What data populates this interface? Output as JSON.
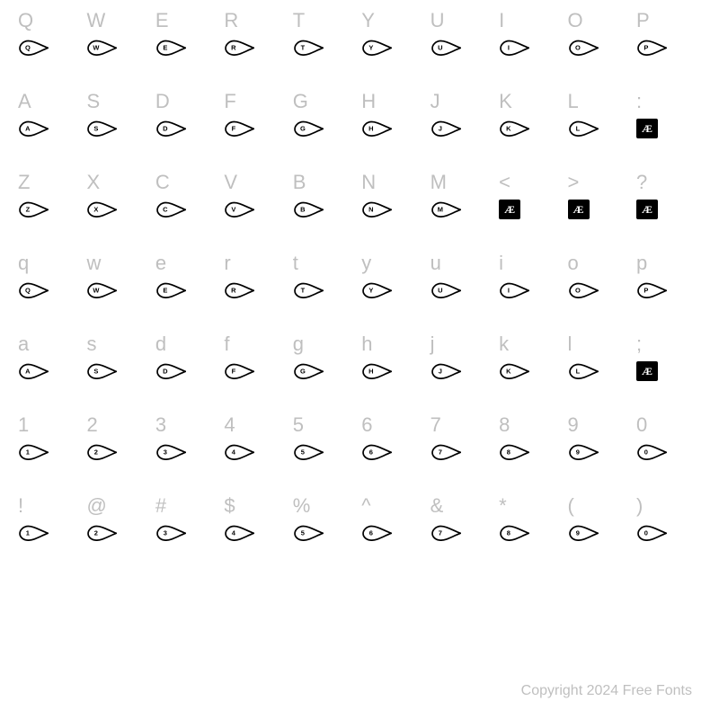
{
  "colors": {
    "label": "#bfbfbf",
    "glyph": "#000000",
    "background": "#ffffff",
    "box_bg": "#000000",
    "box_fg": "#ffffff"
  },
  "typography": {
    "label_fontsize": 22,
    "copyright_fontsize": 16,
    "box_fontsize": 12
  },
  "layout": {
    "cols": 10,
    "eye_width": 34,
    "eye_height": 18
  },
  "rows": [
    {
      "labels": [
        "Q",
        "W",
        "E",
        "R",
        "T",
        "Y",
        "U",
        "I",
        "O",
        "P"
      ],
      "glyphs": [
        {
          "type": "eye",
          "inner": "Q"
        },
        {
          "type": "eye",
          "inner": "W"
        },
        {
          "type": "eye",
          "inner": "E"
        },
        {
          "type": "eye",
          "inner": "R"
        },
        {
          "type": "eye",
          "inner": "T"
        },
        {
          "type": "eye",
          "inner": "Y"
        },
        {
          "type": "eye",
          "inner": "U"
        },
        {
          "type": "eye",
          "inner": "I"
        },
        {
          "type": "eye",
          "inner": "O"
        },
        {
          "type": "eye",
          "inner": "P"
        }
      ]
    },
    {
      "labels": [
        "A",
        "S",
        "D",
        "F",
        "G",
        "H",
        "J",
        "K",
        "L",
        ":"
      ],
      "glyphs": [
        {
          "type": "eye",
          "inner": "A"
        },
        {
          "type": "eye",
          "inner": "S"
        },
        {
          "type": "eye",
          "inner": "D"
        },
        {
          "type": "eye",
          "inner": "F"
        },
        {
          "type": "eye",
          "inner": "G"
        },
        {
          "type": "eye",
          "inner": "H"
        },
        {
          "type": "eye",
          "inner": "J"
        },
        {
          "type": "eye",
          "inner": "K"
        },
        {
          "type": "eye",
          "inner": "L"
        },
        {
          "type": "box",
          "text": "Æ"
        }
      ]
    },
    {
      "labels": [
        "Z",
        "X",
        "C",
        "V",
        "B",
        "N",
        "M",
        "<",
        ">",
        "?"
      ],
      "glyphs": [
        {
          "type": "eye",
          "inner": "Z"
        },
        {
          "type": "eye",
          "inner": "X"
        },
        {
          "type": "eye",
          "inner": "C"
        },
        {
          "type": "eye",
          "inner": "V"
        },
        {
          "type": "eye",
          "inner": "B"
        },
        {
          "type": "eye",
          "inner": "N"
        },
        {
          "type": "eye",
          "inner": "M"
        },
        {
          "type": "box",
          "text": "Æ"
        },
        {
          "type": "box",
          "text": "Æ"
        },
        {
          "type": "box",
          "text": "Æ"
        }
      ]
    },
    {
      "labels": [
        "q",
        "w",
        "e",
        "r",
        "t",
        "y",
        "u",
        "i",
        "o",
        "p"
      ],
      "glyphs": [
        {
          "type": "eye",
          "inner": "Q"
        },
        {
          "type": "eye",
          "inner": "W"
        },
        {
          "type": "eye",
          "inner": "E"
        },
        {
          "type": "eye",
          "inner": "R"
        },
        {
          "type": "eye",
          "inner": "T"
        },
        {
          "type": "eye",
          "inner": "Y"
        },
        {
          "type": "eye",
          "inner": "U"
        },
        {
          "type": "eye",
          "inner": "I"
        },
        {
          "type": "eye",
          "inner": "O"
        },
        {
          "type": "eye",
          "inner": "P"
        }
      ]
    },
    {
      "labels": [
        "a",
        "s",
        "d",
        "f",
        "g",
        "h",
        "j",
        "k",
        "l",
        ";"
      ],
      "glyphs": [
        {
          "type": "eye",
          "inner": "A"
        },
        {
          "type": "eye",
          "inner": "S"
        },
        {
          "type": "eye",
          "inner": "D"
        },
        {
          "type": "eye",
          "inner": "F"
        },
        {
          "type": "eye",
          "inner": "G"
        },
        {
          "type": "eye",
          "inner": "H"
        },
        {
          "type": "eye",
          "inner": "J"
        },
        {
          "type": "eye",
          "inner": "K"
        },
        {
          "type": "eye",
          "inner": "L"
        },
        {
          "type": "box",
          "text": "Æ"
        }
      ]
    },
    {
      "labels": [
        "1",
        "2",
        "3",
        "4",
        "5",
        "6",
        "7",
        "8",
        "9",
        "0"
      ],
      "glyphs": [
        {
          "type": "eye",
          "inner": "1"
        },
        {
          "type": "eye",
          "inner": "2"
        },
        {
          "type": "eye",
          "inner": "3"
        },
        {
          "type": "eye",
          "inner": "4"
        },
        {
          "type": "eye",
          "inner": "5"
        },
        {
          "type": "eye",
          "inner": "6"
        },
        {
          "type": "eye",
          "inner": "7"
        },
        {
          "type": "eye",
          "inner": "8"
        },
        {
          "type": "eye",
          "inner": "9"
        },
        {
          "type": "eye",
          "inner": "0"
        }
      ]
    },
    {
      "labels": [
        "!",
        "@",
        "#",
        "$",
        "%",
        "^",
        "&",
        "*",
        "(",
        ")"
      ],
      "glyphs": [
        {
          "type": "eye",
          "inner": "1"
        },
        {
          "type": "eye",
          "inner": "2"
        },
        {
          "type": "eye",
          "inner": "3"
        },
        {
          "type": "eye",
          "inner": "4"
        },
        {
          "type": "eye",
          "inner": "5"
        },
        {
          "type": "eye",
          "inner": "6"
        },
        {
          "type": "eye",
          "inner": "7"
        },
        {
          "type": "eye",
          "inner": "8"
        },
        {
          "type": "eye",
          "inner": "9"
        },
        {
          "type": "eye",
          "inner": "0"
        }
      ]
    }
  ],
  "copyright": "Copyright 2024 Free Fonts"
}
